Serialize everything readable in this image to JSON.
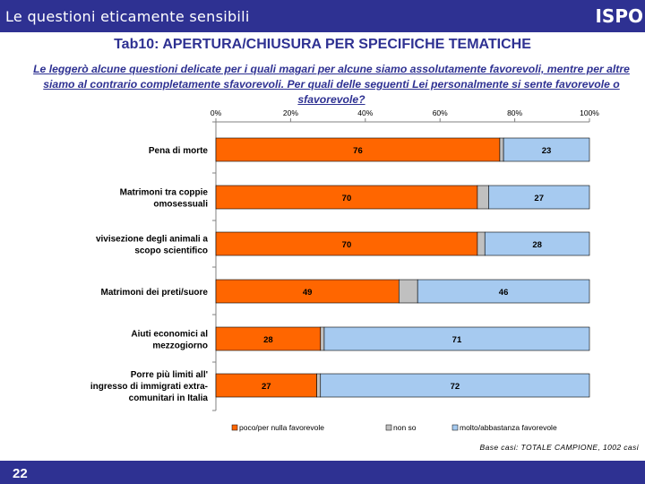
{
  "header": {
    "title": "Le questioni eticamente sensibili",
    "brand": "ISPO"
  },
  "tab_title": "Tab10: APERTURA/CHIUSURA PER SPECIFICHE TEMATICHE",
  "question": "Le leggerò alcune questioni delicate per i quali magari per alcune siamo assolutamente favorevoli, mentre per altre siamo al contrario completamente sfavorevoli. Per quali delle seguenti Lei personalmente si sente favorevole o sfavorevole?",
  "chart_data": {
    "type": "bar",
    "orientation": "horizontal",
    "stacked": true,
    "categories": [
      [
        "Pena di morte"
      ],
      [
        "Matrimoni tra coppie",
        "omosessuali"
      ],
      [
        "vivisezione degli animali a",
        "scopo scientifico"
      ],
      [
        "Matrimoni dei preti/suore"
      ],
      [
        "Aiuti economici al",
        "mezzogiorno"
      ],
      [
        "Porre più limiti all'",
        "ingresso di immigrati extra-",
        "comunitari in Italia"
      ]
    ],
    "series": [
      {
        "name": "poco/per nulla favorevole",
        "color": "#ff6600",
        "values": [
          76,
          70,
          70,
          49,
          28,
          27
        ],
        "show_labels": true
      },
      {
        "name": "non so",
        "color": "#c0c0c0",
        "values": [
          1,
          3,
          2,
          5,
          1,
          1
        ],
        "show_labels": false
      },
      {
        "name": "molto/abbastanza favorevole",
        "color": "#a6caf0",
        "values": [
          23,
          27,
          28,
          46,
          71,
          72
        ],
        "show_labels": true
      }
    ],
    "x_ticks": [
      "0%",
      "20%",
      "40%",
      "60%",
      "80%",
      "100%"
    ],
    "xlim": [
      0,
      100
    ],
    "grid": false,
    "legend_position": "bottom"
  },
  "base_note": "Base casi: TOTALE CAMPIONE, 1002 casi",
  "footer": {
    "page_number": "22"
  }
}
